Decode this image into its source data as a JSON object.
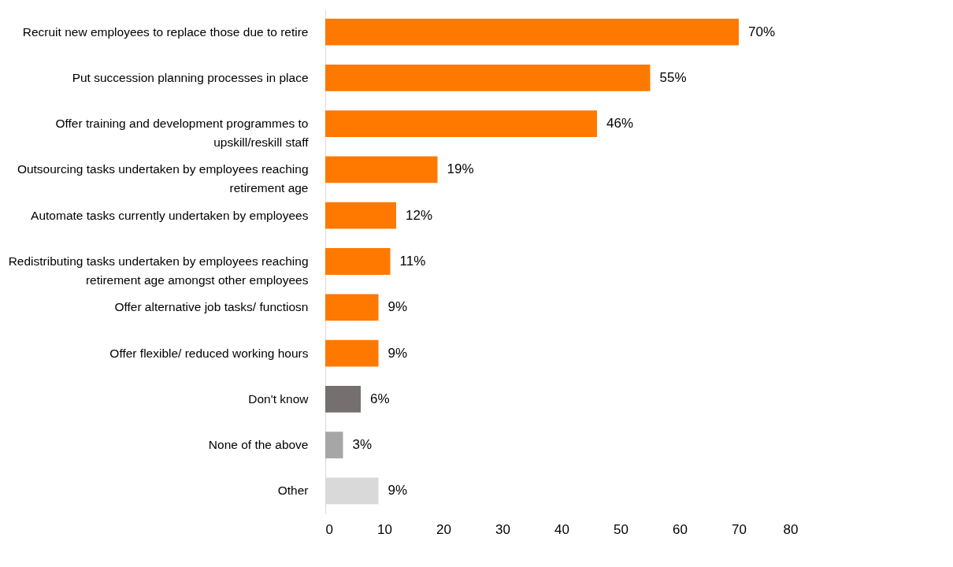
{
  "chart_data": {
    "type": "bar",
    "orientation": "horizontal",
    "categories": [
      "Recruit new employees to replace those due to retire",
      "Put succession planning processes in place",
      "Offer training and development programmes to upskill/reskill staff",
      "Outsourcing tasks undertaken by employees reaching retirement age",
      "Automate tasks currently undertaken by employees",
      "Redistributing tasks undertaken by employees reaching retirement age amongst other employees",
      "Offer alternative job tasks/ functiosn",
      "Offer flexible/ reduced working hours",
      "Don't know",
      "None of the above",
      "Other"
    ],
    "values": [
      70,
      55,
      46,
      19,
      12,
      11,
      9,
      9,
      6,
      3,
      9
    ],
    "colors": [
      "#ff7800",
      "#ff7800",
      "#ff7800",
      "#ff7800",
      "#ff7800",
      "#ff7800",
      "#ff7800",
      "#ff7800",
      "#756f6f",
      "#a6a6a6",
      "#d9d9d9"
    ],
    "value_labels": [
      "70%",
      "55%",
      "46%",
      "19%",
      "12%",
      "11%",
      "9%",
      "9%",
      "6%",
      "3%",
      "9%"
    ],
    "xlim": [
      0,
      80
    ],
    "xticks": [
      0,
      10,
      20,
      30,
      40,
      50,
      60,
      70,
      80
    ],
    "grid": false
  }
}
